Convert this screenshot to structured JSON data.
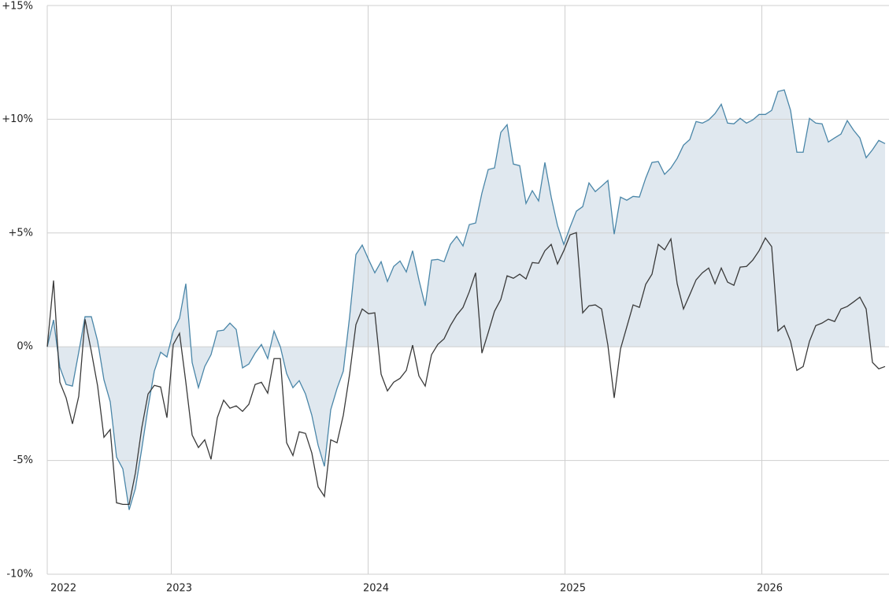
{
  "chart_data": {
    "type": "line",
    "x": [
      2022.37,
      2022.402,
      2022.434,
      2022.466,
      2022.498,
      2022.53,
      2022.562,
      2022.594,
      2022.626,
      2022.658,
      2022.69,
      2022.722,
      2022.754,
      2022.786,
      2022.818,
      2022.85,
      2022.882,
      2022.914,
      2022.946,
      2022.978,
      2023.01,
      2023.042,
      2023.074,
      2023.106,
      2023.138,
      2023.17,
      2023.202,
      2023.234,
      2023.266,
      2023.298,
      2023.33,
      2023.362,
      2023.394,
      2023.426,
      2023.458,
      2023.49,
      2023.522,
      2023.554,
      2023.586,
      2023.618,
      2023.65,
      2023.682,
      2023.714,
      2023.746,
      2023.778,
      2023.81,
      2023.842,
      2023.874,
      2023.906,
      2023.938,
      2023.97,
      2024.002,
      2024.034,
      2024.066,
      2024.098,
      2024.13,
      2024.162,
      2024.194,
      2024.226,
      2024.258,
      2024.29,
      2024.322,
      2024.354,
      2024.386,
      2024.418,
      2024.45,
      2024.482,
      2024.514,
      2024.546,
      2024.578,
      2024.61,
      2024.642,
      2024.674,
      2024.706,
      2024.738,
      2024.77,
      2024.802,
      2024.834,
      2024.866,
      2024.898,
      2024.93,
      2024.962,
      2024.994,
      2025.026,
      2025.058,
      2025.09,
      2025.122,
      2025.154,
      2025.186,
      2025.218,
      2025.25,
      2025.282,
      2025.314,
      2025.346,
      2025.378,
      2025.41,
      2025.442,
      2025.474,
      2025.506,
      2025.538,
      2025.57,
      2025.602,
      2025.634,
      2025.666,
      2025.698,
      2025.73,
      2025.762,
      2025.794,
      2025.826,
      2025.858,
      2025.89,
      2025.922,
      2025.954,
      2025.986,
      2026.018,
      2026.05,
      2026.082,
      2026.114,
      2026.146,
      2026.178,
      2026.21,
      2026.242,
      2026.274,
      2026.306,
      2026.338,
      2026.37,
      2026.402,
      2026.434,
      2026.466,
      2026.498,
      2026.53,
      2026.562,
      2026.594,
      2026.626
    ],
    "series": [
      {
        "color": "#4a86a8",
        "fill": "#e0e8ef",
        "area": true,
        "values": [
          0,
          1.18,
          -0.9,
          -1.66,
          -1.73,
          -0.24,
          1.32,
          1.32,
          0.24,
          -1.45,
          -2.42,
          -4.85,
          -5.37,
          -7.17,
          -6.23,
          -4.5,
          -2.67,
          -1.07,
          -0.24,
          -0.45,
          0.69,
          1.25,
          2.77,
          -0.69,
          -1.8,
          -0.87,
          -0.35,
          0.69,
          0.73,
          1.04,
          0.76,
          -0.93,
          -0.76,
          -0.28,
          0.1,
          -0.52,
          0.69,
          0,
          -1.18,
          -1.8,
          -1.49,
          -2.08,
          -3.01,
          -4.33,
          -5.26,
          -2.77,
          -1.84,
          -1.07,
          1.32,
          4.05,
          4.47,
          3.84,
          3.25,
          3.74,
          2.87,
          3.53,
          3.77,
          3.29,
          4.22,
          2.94,
          1.8,
          3.81,
          3.84,
          3.74,
          4.5,
          4.85,
          4.43,
          5.37,
          5.44,
          6.75,
          7.79,
          7.86,
          9.42,
          9.76,
          8.03,
          7.96,
          6.3,
          6.86,
          6.41,
          8.1,
          6.58,
          5.33,
          4.5,
          5.26,
          5.96,
          6.16,
          7.2,
          6.82,
          7.06,
          7.31,
          4.95,
          6.58,
          6.44,
          6.61,
          6.58,
          7.41,
          8.1,
          8.14,
          7.58,
          7.86,
          8.28,
          8.86,
          9.11,
          9.9,
          9.83,
          9.97,
          10.25,
          10.66,
          9.83,
          9.8,
          10.04,
          9.83,
          9.97,
          10.21,
          10.21,
          10.39,
          11.22,
          11.29,
          10.39,
          8.55,
          8.55,
          10.04,
          9.83,
          9.8,
          9.0,
          9.18,
          9.35,
          9.94,
          9.52,
          9.18,
          8.31,
          8.66,
          9.07,
          8.93
        ]
      },
      {
        "color": "#3a3a3a",
        "values": [
          0,
          2.91,
          -1.56,
          -2.25,
          -3.39,
          -2.18,
          1.21,
          -0.21,
          -1.73,
          -3.98,
          -3.64,
          -6.86,
          -6.93,
          -6.93,
          -5.54,
          -3.57,
          -2.08,
          -1.7,
          -1.77,
          -3.12,
          0.1,
          0.59,
          -1.56,
          -3.88,
          -4.43,
          -4.09,
          -4.95,
          -3.12,
          -2.35,
          -2.7,
          -2.6,
          -2.84,
          -2.53,
          -1.66,
          -1.56,
          -2.04,
          -0.52,
          -0.52,
          -4.22,
          -4.78,
          -3.74,
          -3.81,
          -4.67,
          -6.16,
          -6.58,
          -4.09,
          -4.22,
          -3.01,
          -1.21,
          0.97,
          1.66,
          1.45,
          1.49,
          -1.21,
          -1.94,
          -1.56,
          -1.39,
          -1.04,
          0.07,
          -1.28,
          -1.73,
          -0.35,
          0.1,
          0.35,
          0.93,
          1.39,
          1.73,
          2.42,
          3.25,
          -0.28,
          0.62,
          1.56,
          2.08,
          3.12,
          3.01,
          3.19,
          2.98,
          3.7,
          3.67,
          4.22,
          4.5,
          3.64,
          4.22,
          4.92,
          5.02,
          1.49,
          1.8,
          1.84,
          1.66,
          0.07,
          -2.25,
          -0.1,
          0.87,
          1.84,
          1.73,
          2.74,
          3.19,
          4.5,
          4.26,
          4.74,
          2.77,
          1.66,
          2.29,
          2.94,
          3.25,
          3.46,
          2.77,
          3.46,
          2.84,
          2.7,
          3.5,
          3.53,
          3.81,
          4.22,
          4.78,
          4.4,
          0.69,
          0.93,
          0.24,
          -1.04,
          -0.87,
          0.24,
          0.93,
          1.04,
          1.21,
          1.11,
          1.66,
          1.77,
          1.97,
          2.18,
          1.66,
          -0.69,
          -0.97,
          -0.87
        ]
      }
    ],
    "xlim": [
      2022.37,
      2026.646
    ],
    "xticks": [
      {
        "value": 2022.37,
        "label": "2022"
      },
      2023,
      2024,
      2025,
      2026
    ],
    "ylim": [
      -10,
      15
    ],
    "yticks": [
      {
        "value": 15,
        "label": "+15%"
      },
      {
        "value": 10,
        "label": "+10%"
      },
      {
        "value": 5,
        "label": "+5%"
      },
      {
        "value": 0,
        "label": "0%"
      },
      {
        "value": -5,
        "label": "-5%"
      },
      {
        "value": -10,
        "label": "-10%"
      }
    ],
    "grid": true
  }
}
